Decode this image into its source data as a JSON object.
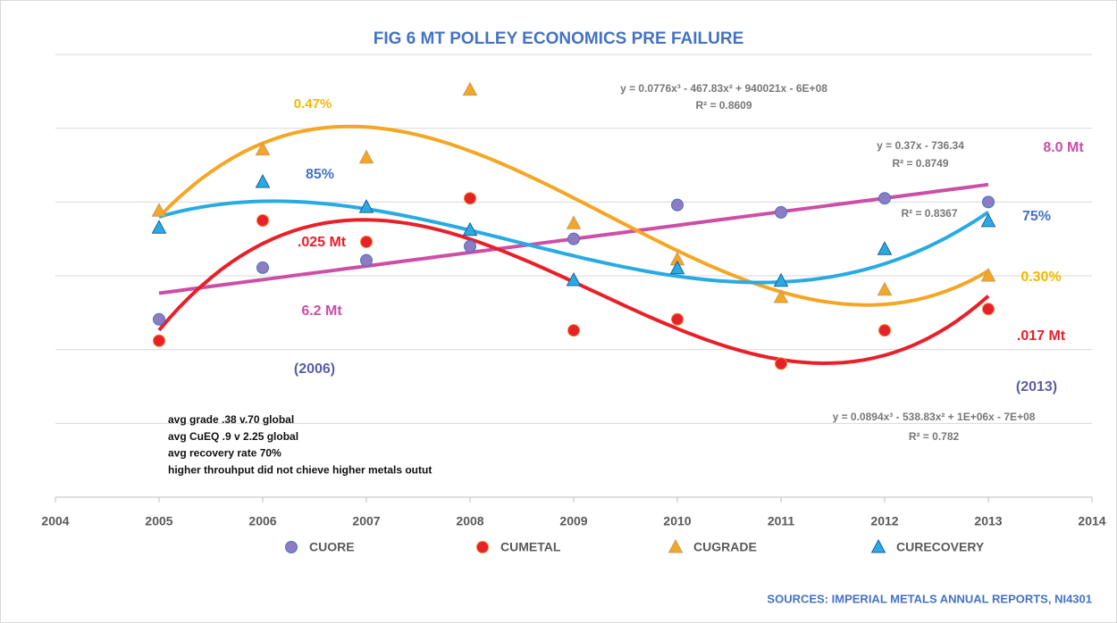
{
  "chart_data": {
    "type": "scatter",
    "title": "FIG  6 MT POLLEY ECONOMICS PRE FAILURE",
    "x": [
      2005,
      2006,
      2007,
      2008,
      2009,
      2010,
      2011,
      2012,
      2013
    ],
    "xlim": [
      2004,
      2014
    ],
    "xticks": [
      2004,
      2005,
      2006,
      2007,
      2008,
      2009,
      2010,
      2011,
      2012,
      2013,
      2014
    ],
    "ylim": [
      0,
      6
    ],
    "yticks": [
      0,
      1,
      2,
      3,
      4,
      5,
      6
    ],
    "grid": true,
    "legend": "bottom",
    "series": [
      {
        "name": "CUORE",
        "marker": "circle",
        "color": "#8e7cc3",
        "edge": "#4472c4",
        "trend_color": "#cc4fa6",
        "trend_order": 1,
        "values": [
          2.41,
          3.11,
          3.21,
          3.4,
          3.5,
          3.96,
          3.86,
          4.05,
          4.0
        ]
      },
      {
        "name": "CUMETAL",
        "marker": "circle",
        "color": "#e8202a",
        "edge": "#f08030",
        "trend_color": "#e8202a",
        "trend_order": 3,
        "values": [
          2.12,
          3.75,
          3.46,
          4.05,
          2.26,
          2.41,
          1.81,
          2.26,
          2.55
        ]
      },
      {
        "name": "CUGRADE",
        "marker": "triangle",
        "color": "#f5a623",
        "edge": "#c89a60",
        "trend_color": "#f5a623",
        "trend_order": 3,
        "values": [
          3.88,
          4.71,
          4.6,
          5.52,
          3.71,
          3.22,
          2.71,
          2.81,
          3.0
        ]
      },
      {
        "name": "CURECOVERY",
        "marker": "triangle",
        "color": "#29abe2",
        "edge": "#1f5fa0",
        "trend_color": "#29abe2",
        "trend_order": 3,
        "values": [
          3.65,
          4.27,
          3.93,
          3.62,
          2.94,
          3.1,
          2.93,
          3.36,
          3.74
        ]
      }
    ],
    "annotations": [
      {
        "text": "0.47%",
        "color": "#f5b700"
      },
      {
        "text": "85%",
        "color": "#4472c4"
      },
      {
        "text": ".025 Mt",
        "color": "#e8202a"
      },
      {
        "text": "6.2 Mt",
        "color": "#cc4fa6"
      },
      {
        "text": "(2006)",
        "color": "#5b5ea6"
      },
      {
        "text": "y = 0.0776x³ - 467.83x² + 940021x - 6E+08",
        "color": "#777777"
      },
      {
        "text": "R² = 0.8609",
        "color": "#777777"
      },
      {
        "text": "y = 0.37x - 736.34",
        "color": "#777777"
      },
      {
        "text": "R² = 0.8749",
        "color": "#777777"
      },
      {
        "text": "8.0 Mt",
        "color": "#cc4fa6"
      },
      {
        "text": "R² = 0.8367",
        "color": "#777777"
      },
      {
        "text": "75%",
        "color": "#4472c4"
      },
      {
        "text": "0.30%",
        "color": "#f5b700"
      },
      {
        "text": ".017 Mt",
        "color": "#e8202a"
      },
      {
        "text": "(2013)",
        "color": "#5b5ea6"
      },
      {
        "text": "y = 0.0894x³ - 538.83x² + 1E+06x - 7E+08",
        "color": "#777777"
      },
      {
        "text": "R² = 0.782",
        "color": "#777777"
      }
    ],
    "notes": [
      "avg grade .38 v.70 global",
      "avg CuEQ .9 v 2.25 global",
      "avg recovery rate 70%",
      "higher throuhput did  not chieve  higher metals outut"
    ],
    "source": "SOURCES: IMPERIAL METALS ANNUAL REPORTS, NI4301"
  }
}
